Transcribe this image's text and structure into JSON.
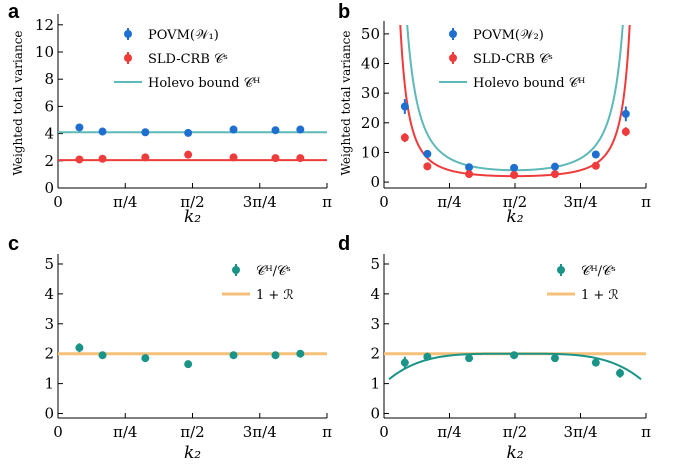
{
  "panels": {
    "a": {
      "label": "a"
    },
    "b": {
      "label": "b"
    },
    "c": {
      "label": "c"
    },
    "d": {
      "label": "d"
    }
  },
  "colors": {
    "povm": "#1f6fd1",
    "sld": "#ee3b3b",
    "holevo": "#5fb8b8",
    "ratio": "#1a9486",
    "bound": "#f5c07a",
    "axis": "#000000"
  },
  "chart_data": [
    {
      "id": "a",
      "type": "scatter",
      "xlabel": "k₂",
      "ylabel": "Weighted total variance",
      "xlim": [
        0,
        3.14159
      ],
      "ylim": [
        0,
        12.5
      ],
      "xticks": [
        "0",
        "π/4",
        "π/2",
        "3π/4",
        "π"
      ],
      "yticks": [
        0,
        2,
        4,
        6,
        8,
        10,
        12
      ],
      "legend": "top-center",
      "series": [
        {
          "name": "POVM(𝒲₁)",
          "kind": "points",
          "color": "#1f6fd1",
          "x": [
            0.25,
            0.52,
            1.02,
            1.52,
            2.05,
            2.54,
            2.83
          ],
          "y": [
            4.45,
            4.15,
            4.1,
            4.05,
            4.3,
            4.25,
            4.3
          ]
        },
        {
          "name": "SLD-CRB 𝒞ˢ",
          "kind": "points",
          "color": "#ee3b3b",
          "x": [
            0.25,
            0.52,
            1.02,
            1.52,
            2.05,
            2.54,
            2.83
          ],
          "y": [
            2.1,
            2.15,
            2.25,
            2.45,
            2.25,
            2.2,
            2.2
          ]
        },
        {
          "name": "Holevo bound 𝒞ᴴ",
          "kind": "line",
          "color": "#5fb8b8",
          "x": [
            0,
            3.14159
          ],
          "y": [
            4.1,
            4.1
          ]
        },
        {
          "name": "",
          "kind": "line",
          "color": "#ee3b3b",
          "x": [
            0,
            3.14159
          ],
          "y": [
            2.05,
            2.05
          ]
        }
      ]
    },
    {
      "id": "b",
      "type": "scatter",
      "xlabel": "k₂",
      "ylabel": "Weighted total variance",
      "xlim": [
        0,
        3.14159
      ],
      "ylim": [
        -2,
        53
      ],
      "xticks": [
        "0",
        "π/4",
        "π/2",
        "3π/4",
        "π"
      ],
      "yticks": [
        0,
        10,
        20,
        30,
        40,
        50
      ],
      "legend": "top-center",
      "series": [
        {
          "name": "POVM(𝒲₂)",
          "kind": "points",
          "color": "#1f6fd1",
          "x": [
            0.25,
            0.52,
            1.02,
            1.56,
            2.05,
            2.54,
            2.9
          ],
          "y": [
            25.5,
            9.5,
            5.0,
            4.8,
            5.2,
            9.3,
            23.0
          ],
          "err": [
            2.5,
            0.5,
            0.4,
            0.4,
            0.4,
            0.6,
            2.5
          ]
        },
        {
          "name": "SLD-CRB 𝒞ˢ",
          "kind": "points",
          "color": "#ee3b3b",
          "x": [
            0.25,
            0.52,
            1.02,
            1.56,
            2.05,
            2.54,
            2.9
          ],
          "y": [
            15.0,
            5.3,
            2.7,
            2.4,
            2.7,
            5.5,
            17.0
          ],
          "err": [
            1.5,
            0.3,
            0.2,
            0.2,
            0.2,
            0.4,
            1.5
          ]
        },
        {
          "name": "Holevo bound 𝒞ᴴ",
          "kind": "curve",
          "color": "#5fb8b8",
          "base": 4.0
        },
        {
          "name": "",
          "kind": "curve",
          "color": "#ee3b3b",
          "base": 2.0
        }
      ]
    },
    {
      "id": "c",
      "type": "scatter",
      "xlabel": "k₂",
      "ylabel": "",
      "xlim": [
        0,
        3.14159
      ],
      "ylim": [
        -0.15,
        5.2
      ],
      "xticks": [
        "0",
        "π/4",
        "π/2",
        "3π/4",
        "π"
      ],
      "yticks": [
        0,
        1,
        2,
        3,
        4,
        5
      ],
      "legend": "top-right",
      "series": [
        {
          "name": "𝒞ᴴ/𝒞ˢ",
          "kind": "points",
          "color": "#1a9486",
          "x": [
            0.25,
            0.52,
            1.02,
            1.52,
            2.05,
            2.54,
            2.83
          ],
          "y": [
            2.2,
            1.95,
            1.85,
            1.65,
            1.95,
            1.95,
            2.0
          ],
          "err": [
            0.15,
            0.05,
            0.05,
            0.05,
            0.05,
            0.05,
            0.05
          ]
        },
        {
          "name": "1 + ℛ",
          "kind": "line",
          "color": "#f5c07a",
          "x": [
            0,
            3.14159
          ],
          "y": [
            2.0,
            2.0
          ]
        }
      ]
    },
    {
      "id": "d",
      "type": "scatter",
      "xlabel": "k₂",
      "ylabel": "",
      "xlim": [
        0,
        3.14159
      ],
      "ylim": [
        -0.15,
        5.2
      ],
      "xticks": [
        "0",
        "π/4",
        "π/2",
        "3π/4",
        "π"
      ],
      "yticks": [
        0,
        1,
        2,
        3,
        4,
        5
      ],
      "legend": "top-right",
      "series": [
        {
          "name": "𝒞ᴴ/𝒞ˢ",
          "kind": "points",
          "color": "#1a9486",
          "x": [
            0.25,
            0.52,
            1.02,
            1.56,
            2.05,
            2.54,
            2.83
          ],
          "y": [
            1.7,
            1.9,
            1.85,
            1.95,
            1.85,
            1.7,
            1.35
          ],
          "err": [
            0.2,
            0.12,
            0.08,
            0.08,
            0.08,
            0.1,
            0.15
          ]
        },
        {
          "name": "1 + ℛ",
          "kind": "line",
          "color": "#f5c07a",
          "x": [
            0,
            3.14159
          ],
          "y": [
            2.0,
            2.0
          ]
        },
        {
          "name": "",
          "kind": "curve",
          "color": "#1a9486",
          "base": 1.0
        }
      ]
    }
  ]
}
